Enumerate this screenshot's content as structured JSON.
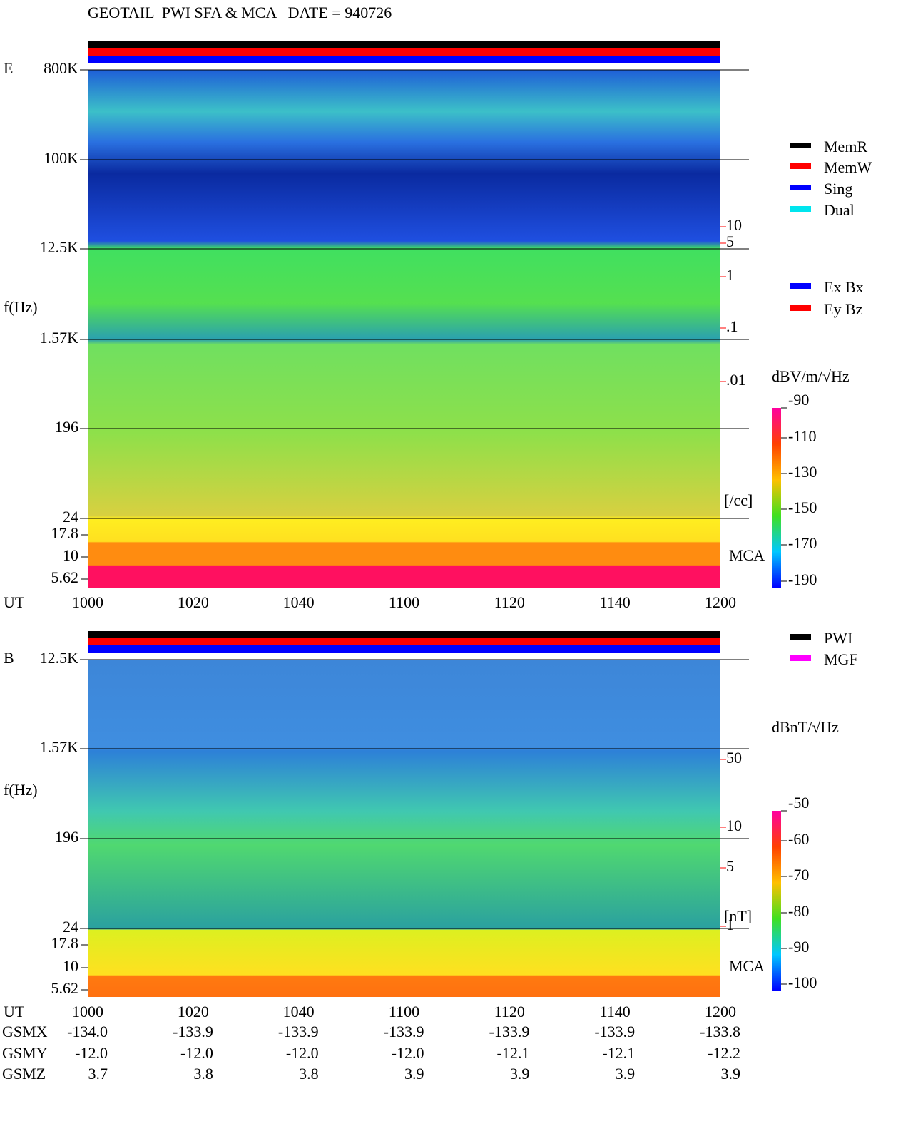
{
  "header": {
    "title": "GEOTAIL  PWI SFA & MCA   DATE = 940726"
  },
  "panels": [
    {
      "label": "E",
      "freq_ticks": [
        "800K",
        "100K",
        "12.5K",
        "1.57K",
        "196",
        "24",
        "17.8",
        "10",
        "5.62"
      ],
      "axis_title": "f(Hz)",
      "right_ticks": [
        "10",
        "5",
        "1",
        ".1",
        ".01"
      ],
      "right_unit": "[/cc]",
      "mca": "MCA",
      "legend": [
        {
          "name": "MemR",
          "color": "#000000"
        },
        {
          "name": "MemW",
          "color": "#ff0000"
        },
        {
          "name": "Sing",
          "color": "#0000ff"
        },
        {
          "name": "Dual",
          "color": "#00e5ee"
        },
        {
          "name": "Ex Bx",
          "color": "#0000ff"
        },
        {
          "name": "Ey Bz",
          "color": "#ff0000"
        }
      ],
      "colorbar_title": "dBV/m/√Hz",
      "colorbar_ticks": [
        "-90",
        "-110",
        "-130",
        "-150",
        "-170",
        "-190"
      ]
    },
    {
      "label": "B",
      "freq_ticks": [
        "12.5K",
        "1.57K",
        "196",
        "24",
        "17.8",
        "10",
        "5.62"
      ],
      "axis_title": "f(Hz)",
      "right_ticks": [
        "50",
        "10",
        "5",
        "1"
      ],
      "right_unit": "[nT]",
      "mca": "MCA",
      "legend": [
        {
          "name": "PWI",
          "color": "#000000"
        },
        {
          "name": "MGF",
          "color": "#ff00ff"
        }
      ],
      "colorbar_title": "dBnT/√Hz",
      "colorbar_ticks": [
        "-50",
        "-60",
        "-70",
        "-80",
        "-90",
        "-100"
      ]
    }
  ],
  "time_axis": {
    "label": "UT",
    "ticks": [
      "1000",
      "1020",
      "1040",
      "1100",
      "1120",
      "1140",
      "1200"
    ]
  },
  "orbit": [
    {
      "label": "GSMX",
      "values": [
        "-134.0",
        "-133.9",
        "-133.9",
        "-133.9",
        "-133.9",
        "-133.9",
        "-133.8"
      ]
    },
    {
      "label": "GSMY",
      "values": [
        "-12.0",
        "-12.0",
        "-12.0",
        "-12.0",
        "-12.1",
        "-12.1",
        "-12.2"
      ]
    },
    {
      "label": "GSMZ",
      "values": [
        "3.7",
        "3.8",
        "3.8",
        "3.9",
        "3.9",
        "3.9",
        "3.9"
      ]
    }
  ]
}
